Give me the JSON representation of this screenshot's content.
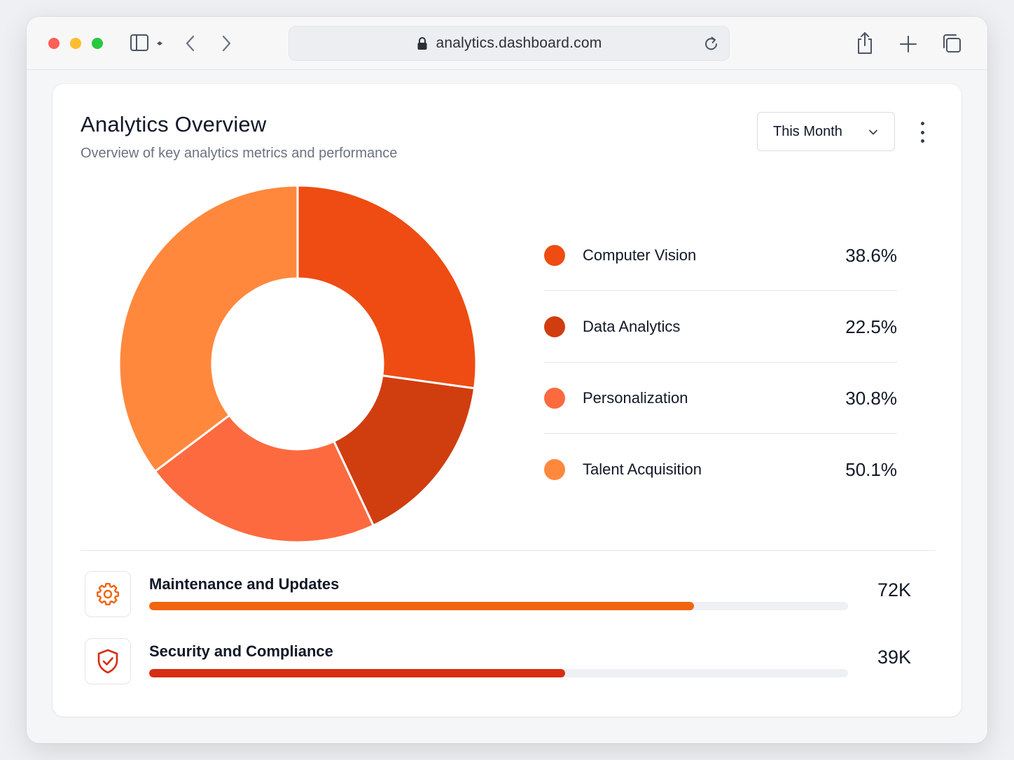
{
  "browser": {
    "url": "analytics.dashboard.com",
    "icons": {
      "sidebar": "sidebar-icon",
      "back": "chevron-left-icon",
      "forward": "chevron-right-icon",
      "lock": "lock-icon",
      "reload": "reload-icon",
      "share": "share-icon",
      "new_tab": "plus-icon",
      "tabs": "tabs-overview-icon"
    }
  },
  "header": {
    "title": "Analytics Overview",
    "subtitle": "Overview of key analytics metrics and performance",
    "period_select": "This Month"
  },
  "chart_data": {
    "type": "pie",
    "donut": true,
    "categories": [
      "Computer Vision",
      "Data Analytics",
      "Personalization",
      "Talent Acquisition"
    ],
    "values": [
      38.6,
      22.5,
      30.8,
      50.1
    ],
    "labels": [
      "38.6%",
      "22.5%",
      "30.8%",
      "50.1%"
    ],
    "colors": [
      "#ee4c12",
      "#d03d0f",
      "#fd6a3f",
      "#ff883d"
    ],
    "legend": "right"
  },
  "metrics": [
    {
      "label": "Maintenance and Updates",
      "value": "72K",
      "progress": 0.78,
      "color": "#f0650f",
      "icon": "gear-icon"
    },
    {
      "label": "Security and Compliance",
      "value": "39K",
      "progress": 0.595,
      "color": "#d72d12",
      "icon": "shield-check-icon"
    }
  ]
}
